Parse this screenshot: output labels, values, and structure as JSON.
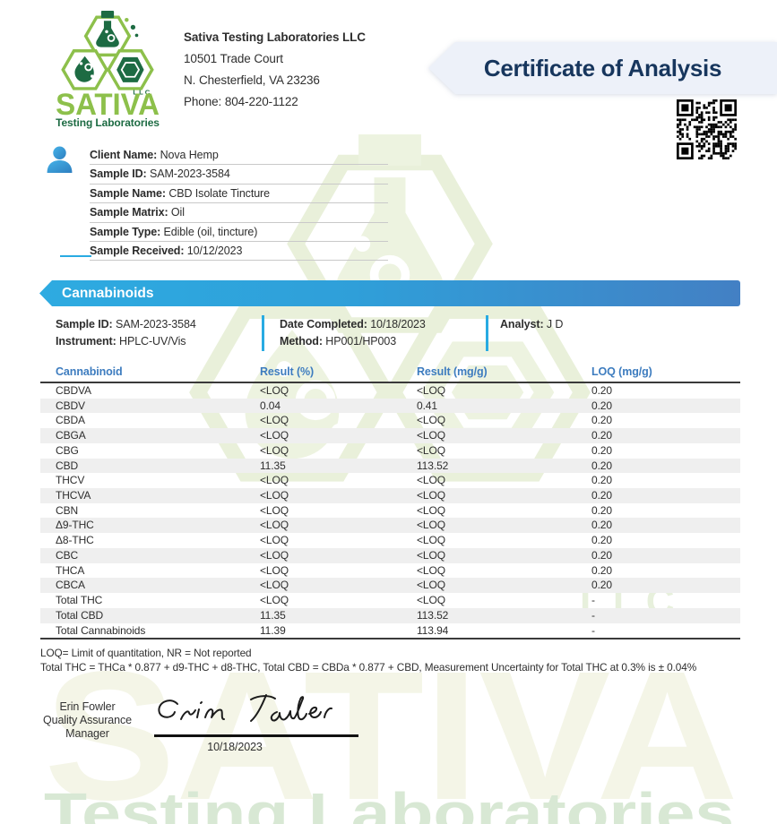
{
  "lab": {
    "name": "Sativa Testing Laboratories LLC",
    "address1": "10501 Trade Court",
    "address2": "N. Chesterfield, VA 23236",
    "phone": "Phone: 804-220-1122",
    "logo": {
      "brand": "SATIVA",
      "llc": "LLC",
      "tagline": "Testing Laboratories"
    }
  },
  "title": "Certificate of Analysis",
  "client": {
    "fields": [
      {
        "label": "Client Name:",
        "value": "Nova Hemp"
      },
      {
        "label": "Sample ID:",
        "value": "SAM-2023-3584"
      },
      {
        "label": "Sample Name:",
        "value": "CBD Isolate Tincture"
      },
      {
        "label": "Sample Matrix:",
        "value": "Oil"
      },
      {
        "label": "Sample Type:",
        "value": "Edible (oil, tincture)"
      },
      {
        "label": "Sample Received:",
        "value": "10/12/2023"
      }
    ]
  },
  "section": {
    "title": "Cannabinoids",
    "meta_col1": [
      {
        "label": "Sample ID:",
        "value": "SAM-2023-3584"
      },
      {
        "label": "Instrument:",
        "value": "HPLC-UV/Vis"
      }
    ],
    "meta_col2": [
      {
        "label": "Date Completed:",
        "value": "10/18/2023"
      },
      {
        "label": "Method:",
        "value": "HP001/HP003"
      }
    ],
    "meta_col3": [
      {
        "label": "Analyst:",
        "value": "J D"
      }
    ]
  },
  "table": {
    "columns": [
      "Cannabinoid",
      "Result (%)",
      "Result (mg/g)",
      "LOQ (mg/g)"
    ],
    "rows": [
      [
        "CBDVA",
        "<LOQ",
        "<LOQ",
        "0.20"
      ],
      [
        "CBDV",
        "0.04",
        "0.41",
        "0.20"
      ],
      [
        "CBDA",
        "<LOQ",
        "<LOQ",
        "0.20"
      ],
      [
        "CBGA",
        "<LOQ",
        "<LOQ",
        "0.20"
      ],
      [
        "CBG",
        "<LOQ",
        "<LOQ",
        "0.20"
      ],
      [
        "CBD",
        "11.35",
        "113.52",
        "0.20"
      ],
      [
        "THCV",
        "<LOQ",
        "<LOQ",
        "0.20"
      ],
      [
        "THCVA",
        "<LOQ",
        "<LOQ",
        "0.20"
      ],
      [
        "CBN",
        "<LOQ",
        "<LOQ",
        "0.20"
      ],
      [
        "Δ9-THC",
        "<LOQ",
        "<LOQ",
        "0.20"
      ],
      [
        "Δ8-THC",
        "<LOQ",
        "<LOQ",
        "0.20"
      ],
      [
        "CBC",
        "<LOQ",
        "<LOQ",
        "0.20"
      ],
      [
        "THCA",
        "<LOQ",
        "<LOQ",
        "0.20"
      ],
      [
        "CBCA",
        "<LOQ",
        "<LOQ",
        "0.20"
      ],
      [
        "Total THC",
        "<LOQ",
        "<LOQ",
        "-"
      ],
      [
        "Total CBD",
        "11.35",
        "113.52",
        "-"
      ],
      [
        "Total Cannabinoids",
        "11.39",
        "113.94",
        "-"
      ]
    ]
  },
  "footnotes": [
    "LOQ= Limit of quantitation, NR = Not reported",
    "Total THC = THCa * 0.877 + d9-THC + d8-THC, Total CBD = CBDa * 0.877 + CBD, Measurement Uncertainty for Total THC at 0.3% is ± 0.04%"
  ],
  "signature": {
    "signer_lines": [
      "Erin Fowler",
      "Quality Assurance",
      "Manager"
    ],
    "signed_name": "Erin Fowler",
    "date": "10/18/2023"
  },
  "watermark": {
    "brand": "SATIVA",
    "llc": "LLC",
    "tagline": "Testing Laboratories"
  },
  "colors": {
    "accent_blue": "#29abe2",
    "banner_gradient_start": "#2eabe1",
    "banner_gradient_end": "#4380c4",
    "table_header_text": "#3d7cbf",
    "title_navy": "#17365d",
    "coa_banner_bg": "#edf1f9",
    "row_alt": "#efefef",
    "logo_green_light": "#8dc04b",
    "logo_green_dark": "#1d6b43",
    "watermark_cream": "#f4f5e7",
    "watermark_green": "#d8e8d4"
  }
}
